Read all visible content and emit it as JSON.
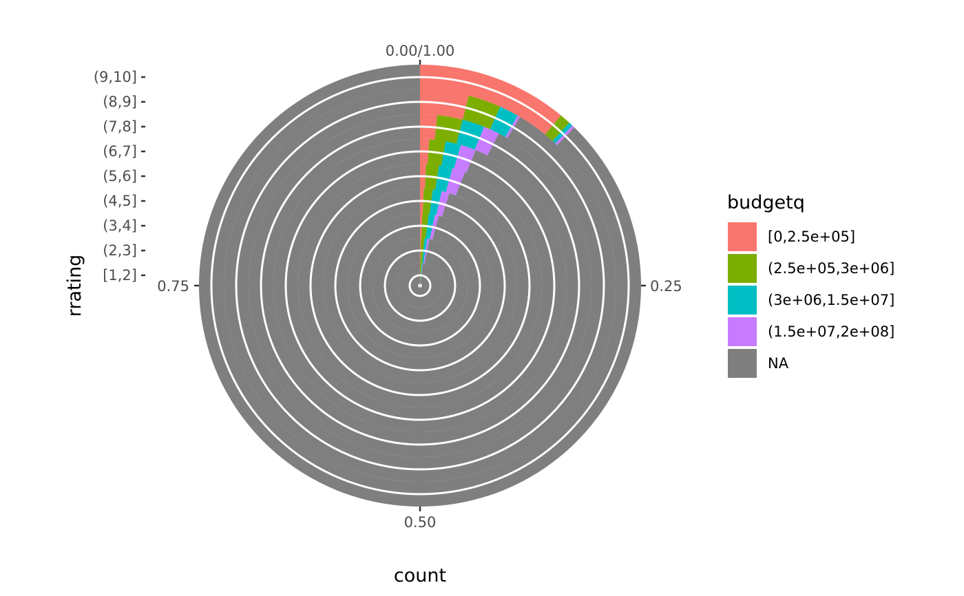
{
  "chart_data": {
    "type": "bar",
    "coord": "polar",
    "position": "fill",
    "xlabel": "count",
    "ylabel": "rrating",
    "theta_ticks": [
      "0.00/1.00",
      "0.25",
      "0.50",
      "0.75"
    ],
    "categories": [
      "[1,2]",
      "(2,3]",
      "(3,4]",
      "(4,5]",
      "(5,6]",
      "(6,7]",
      "(7,8]",
      "(8,9]",
      "(9,10]"
    ],
    "legend": {
      "title": "budgetq",
      "placement": "right",
      "entries": [
        {
          "label": "[0,2.5e+05]",
          "color": "#F8766D"
        },
        {
          "label": "(2.5e+05,3e+06]",
          "color": "#7CAE00"
        },
        {
          "label": "(3e+06,1.5e+07]",
          "color": "#00BFC4"
        },
        {
          "label": "(1.5e+07,2e+08]",
          "color": "#C77CFF"
        },
        {
          "label": "NA",
          "color": "#7F7F7F"
        }
      ]
    },
    "series": [
      {
        "name": "[0,2.5e+05]",
        "values": [
          0.002,
          0.003,
          0.005,
          0.006,
          0.008,
          0.01,
          0.016,
          0.04,
          0.11
        ]
      },
      {
        "name": "(2.5e+05,3e+06]",
        "values": [
          0.01,
          0.012,
          0.014,
          0.015,
          0.017,
          0.018,
          0.024,
          0.027,
          0.008
        ]
      },
      {
        "name": "(3e+06,1.5e+07]",
        "values": [
          0.006,
          0.01,
          0.014,
          0.015,
          0.018,
          0.017,
          0.021,
          0.016,
          0.003
        ]
      },
      {
        "name": "(1.5e+07,2e+08]",
        "values": [
          0.003,
          0.007,
          0.009,
          0.013,
          0.017,
          0.017,
          0.015,
          0.002,
          0.002
        ]
      },
      {
        "name": "NA",
        "values": [
          0.979,
          0.968,
          0.958,
          0.951,
          0.94,
          0.938,
          0.924,
          0.915,
          0.877
        ]
      }
    ]
  }
}
